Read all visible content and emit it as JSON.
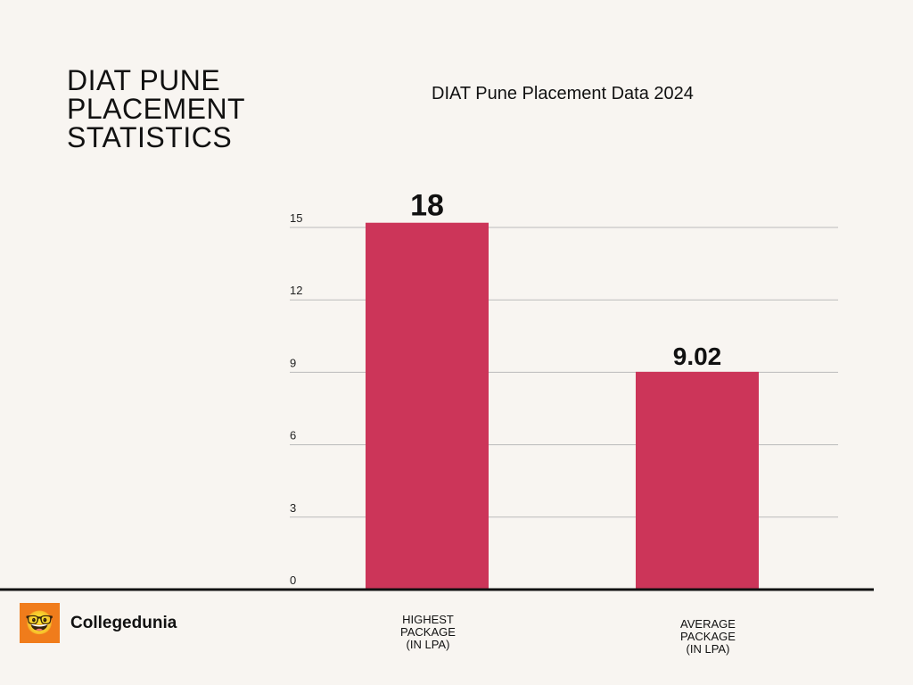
{
  "heading": "DIAT PUNE\nPLACEMENT\nSTATISTICS",
  "brand": {
    "name": "Collegedunia",
    "color": "#f07c1b"
  },
  "chart_data": {
    "type": "bar",
    "title": "DIAT Pune Placement Data 2024",
    "categories": [
      "HIGHEST\nPACKAGE\n(IN LPA)",
      "AVERAGE\nPACKAGE\n(IN LPA)"
    ],
    "values": [
      18,
      9.02
    ],
    "data_labels": [
      "18",
      "9.02"
    ],
    "yticks": [
      "0",
      "3",
      "6",
      "9",
      "12",
      "15"
    ],
    "ylim": [
      0,
      15
    ],
    "grid": true,
    "bar_color": "#cc3559",
    "xlabel": "",
    "ylabel": ""
  }
}
